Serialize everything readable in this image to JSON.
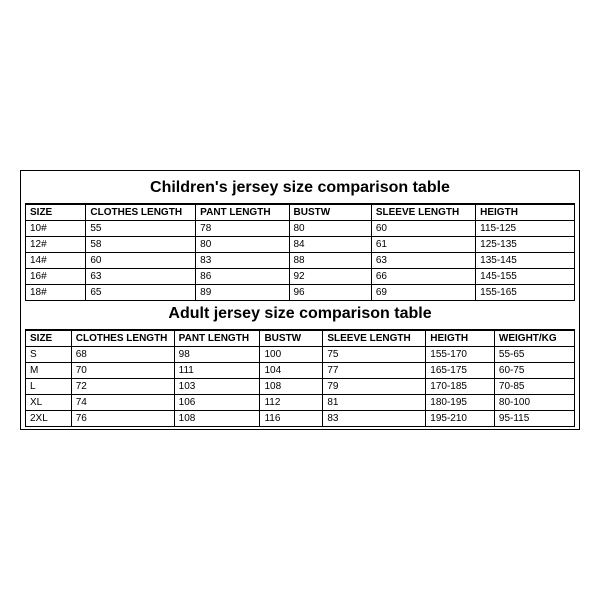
{
  "children": {
    "title": "Children's jersey size comparison table",
    "columns": [
      "SIZE",
      "CLOTHES LENGTH",
      "PANT LENGTH",
      "BUSTW",
      "SLEEVE LENGTH",
      "HEIGTH"
    ],
    "rows": [
      [
        "10#",
        "55",
        "78",
        "80",
        "60",
        "115-125"
      ],
      [
        "12#",
        "58",
        "80",
        "84",
        "61",
        "125-135"
      ],
      [
        "14#",
        "60",
        "83",
        "88",
        "63",
        "135-145"
      ],
      [
        "16#",
        "63",
        "86",
        "92",
        "66",
        "145-155"
      ],
      [
        "18#",
        "65",
        "89",
        "96",
        "69",
        "155-165"
      ]
    ]
  },
  "adults": {
    "title": "Adult jersey size comparison table",
    "columns": [
      "SIZE",
      "CLOTHES LENGTH",
      "PANT LENGTH",
      "BUSTW",
      "SLEEVE LENGTH",
      "HEIGTH",
      "WEIGHT/KG"
    ],
    "rows": [
      [
        "S",
        "68",
        "98",
        "100",
        "75",
        "155-170",
        "55-65"
      ],
      [
        "M",
        "70",
        "111",
        "104",
        "77",
        "165-175",
        "60-75"
      ],
      [
        "L",
        "72",
        "103",
        "108",
        "79",
        "170-185",
        "70-85"
      ],
      [
        "XL",
        "74",
        "106",
        "112",
        "81",
        "180-195",
        "80-100"
      ],
      [
        "2XL",
        "76",
        "108",
        "116",
        "83",
        "195-210",
        "95-115"
      ]
    ]
  },
  "style": {
    "border_color": "#000000",
    "background_color": "#ffffff",
    "text_color": "#000000",
    "title_fontsize": 16,
    "cell_fontsize": 10,
    "font_family": "Arial"
  }
}
